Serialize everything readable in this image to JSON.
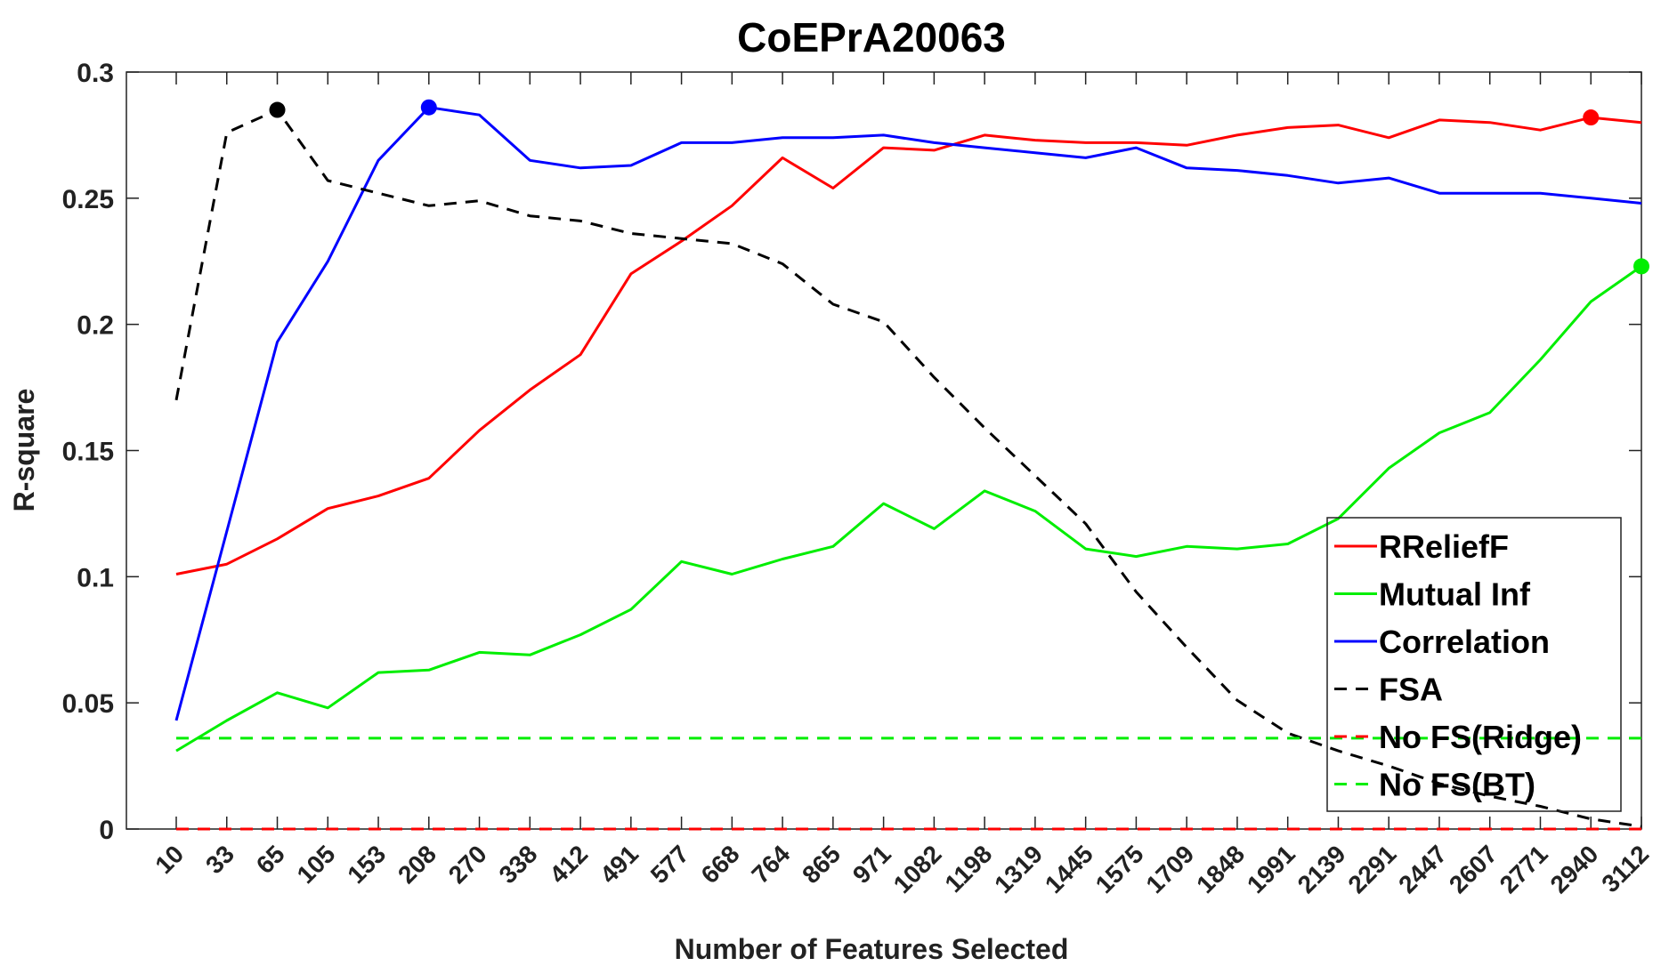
{
  "chart_data": {
    "type": "line",
    "title": "CoEPrA20063",
    "xlabel": "Number of Features Selected",
    "ylabel": "R-square",
    "ylim": [
      0,
      0.3
    ],
    "yticks": [
      "0",
      "0.05",
      "0.1",
      "0.15",
      "0.2",
      "0.25",
      "0.3"
    ],
    "ytick_values": [
      0,
      0.05,
      0.1,
      0.15,
      0.2,
      0.25,
      0.3
    ],
    "categories": [
      "10",
      "33",
      "65",
      "105",
      "153",
      "208",
      "270",
      "338",
      "412",
      "491",
      "577",
      "668",
      "764",
      "865",
      "971",
      "1082",
      "1198",
      "1319",
      "1445",
      "1575",
      "1709",
      "1848",
      "1991",
      "2139",
      "2291",
      "2447",
      "2607",
      "2771",
      "2940",
      "3112"
    ],
    "grid": false,
    "legend_position": "bottom-right",
    "series": [
      {
        "name": "RReliefF",
        "color": "#ff0000",
        "dash": "solid",
        "values": [
          0.101,
          0.105,
          0.115,
          0.127,
          0.132,
          0.139,
          0.158,
          0.174,
          0.188,
          0.22,
          0.233,
          0.247,
          0.266,
          0.254,
          0.27,
          0.269,
          0.275,
          0.273,
          0.272,
          0.272,
          0.271,
          0.275,
          0.278,
          0.279,
          0.274,
          0.281,
          0.28,
          0.277,
          0.282,
          0.28
        ],
        "marker_index": 28
      },
      {
        "name": "Mutual Inf",
        "color": "#00ee00",
        "dash": "solid",
        "values": [
          0.031,
          0.043,
          0.054,
          0.048,
          0.062,
          0.063,
          0.07,
          0.069,
          0.077,
          0.087,
          0.106,
          0.101,
          0.107,
          0.112,
          0.129,
          0.119,
          0.134,
          0.126,
          0.111,
          0.108,
          0.112,
          0.111,
          0.113,
          0.123,
          0.143,
          0.157,
          0.165,
          0.186,
          0.209,
          0.223
        ],
        "marker_index": 29
      },
      {
        "name": "Correlation",
        "color": "#0000ff",
        "dash": "solid",
        "values": [
          0.043,
          0.118,
          0.193,
          0.225,
          0.265,
          0.286,
          0.283,
          0.265,
          0.262,
          0.263,
          0.272,
          0.272,
          0.274,
          0.274,
          0.275,
          0.272,
          0.27,
          0.268,
          0.266,
          0.27,
          0.262,
          0.261,
          0.259,
          0.256,
          0.258,
          0.252,
          0.252,
          0.252,
          0.25,
          0.248
        ],
        "marker_index": 5
      },
      {
        "name": "FSA",
        "color": "#000000",
        "dash": "dashed",
        "values": [
          0.17,
          0.276,
          0.285,
          0.257,
          0.252,
          0.247,
          0.249,
          0.243,
          0.241,
          0.236,
          0.234,
          0.232,
          0.224,
          0.208,
          0.201,
          0.179,
          0.159,
          0.14,
          0.121,
          0.094,
          0.072,
          0.051,
          0.038,
          0.031,
          0.025,
          0.018,
          0.013,
          0.009,
          0.004,
          0.001
        ],
        "marker_index": 2
      },
      {
        "name": "No FS(Ridge)",
        "color": "#ff0000",
        "dash": "dashed",
        "values": [
          0,
          0,
          0,
          0,
          0,
          0,
          0,
          0,
          0,
          0,
          0,
          0,
          0,
          0,
          0,
          0,
          0,
          0,
          0,
          0,
          0,
          0,
          0,
          0,
          0,
          0,
          0,
          0,
          0,
          0
        ],
        "marker_index": null
      },
      {
        "name": "No FS(BT)",
        "color": "#00ee00",
        "dash": "dashed",
        "values": [
          0.036,
          0.036,
          0.036,
          0.036,
          0.036,
          0.036,
          0.036,
          0.036,
          0.036,
          0.036,
          0.036,
          0.036,
          0.036,
          0.036,
          0.036,
          0.036,
          0.036,
          0.036,
          0.036,
          0.036,
          0.036,
          0.036,
          0.036,
          0.036,
          0.036,
          0.036,
          0.036,
          0.036,
          0.036,
          0.036
        ],
        "marker_index": null
      }
    ]
  }
}
